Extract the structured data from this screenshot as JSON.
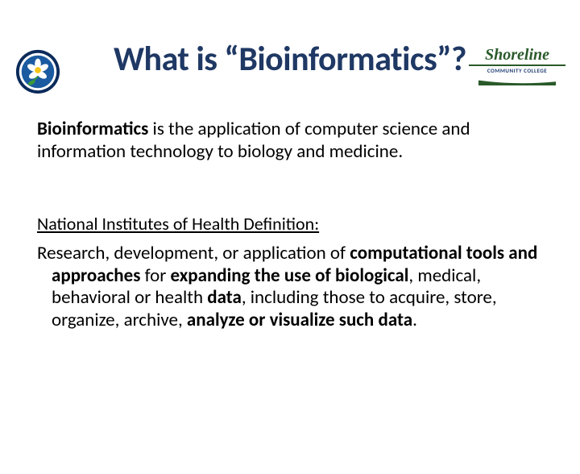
{
  "colors": {
    "title": "#1f3864",
    "body": "#000000",
    "background": "#ffffff",
    "logo_ring": "#0a2a5a",
    "logo_inner": "#1a5aa0",
    "flower_center": "#f5c518",
    "leaf": "#3a9a3a",
    "shoreline_green": "#2a5a2a",
    "shoreline_blue": "#1f3b73"
  },
  "fonts": {
    "title_size": 42,
    "body_size": 23,
    "heading_size": 22
  },
  "logo_right": {
    "main": "Shoreline",
    "sub": "COMMUNITY COLLEGE"
  },
  "title": "What is “Bioinformatics”?",
  "intro": {
    "bold_lead": "Bioinformatics",
    "rest": " is the application of computer science and information technology to biology and medicine."
  },
  "nih": {
    "heading": "National Institutes of Health Definition:",
    "parts": [
      {
        "t": "Research, development, or application of ",
        "b": false
      },
      {
        "t": "computational tools and approaches",
        "b": true
      },
      {
        "t": " for ",
        "b": false
      },
      {
        "t": "expanding the use of biological",
        "b": true
      },
      {
        "t": ", medical, behavioral or health ",
        "b": false
      },
      {
        "t": "data",
        "b": true
      },
      {
        "t": ", including those to acquire, store, organize, archive, ",
        "b": false
      },
      {
        "t": "analyze or visualize such data",
        "b": true
      },
      {
        "t": ".",
        "b": false
      }
    ]
  }
}
